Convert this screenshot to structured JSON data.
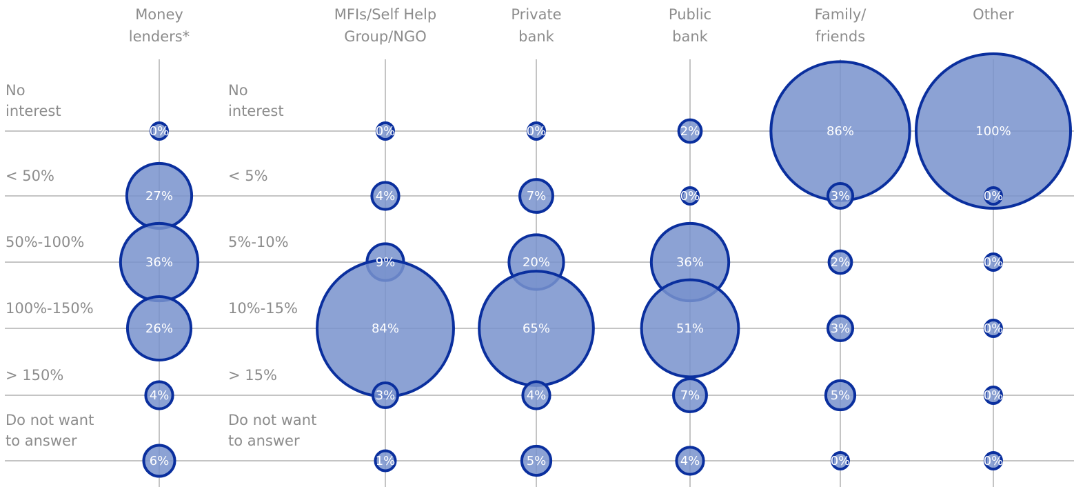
{
  "chart_data": {
    "type": "bubble_matrix",
    "categories": [
      "Money\nlenders*",
      "MFIs/Self Help\nGroup/NGO",
      "Private\nbank",
      "Public\nbank",
      "Family/\nfriends",
      "Other"
    ],
    "row_labels": [
      "No\ninterest",
      "< 50%",
      "50%-100%",
      "100%-150%",
      "> 150%",
      "Do not want\nto answer"
    ],
    "row_labels_2": [
      "No\ninterest",
      "< 5%",
      "5%-10%",
      "10%-15%",
      "> 15%",
      "Do not want\nto answer"
    ],
    "color": "#7892cc",
    "edge_color": "#0a2f9e",
    "series": [
      {
        "name": "Money\nlenders*",
        "values": [
          0,
          27,
          36,
          26,
          4,
          6
        ],
        "value_labels": [
          "0%",
          "27%",
          "36%",
          "26%",
          "4%",
          "6%"
        ]
      },
      {
        "name": "MFIs/Self Help\nGroup/NGO",
        "values": [
          0,
          4,
          9,
          84,
          3,
          1
        ],
        "value_labels": [
          "0%",
          "4%",
          "9%",
          "84%",
          "3%",
          "1%"
        ]
      },
      {
        "name": "Private\nbank",
        "values": [
          0,
          7,
          20,
          65,
          4,
          5
        ],
        "value_labels": [
          "0%",
          "7%",
          "20%",
          "65%",
          "4%",
          "5%"
        ]
      },
      {
        "name": "Public\nbank",
        "values": [
          2,
          0,
          36,
          51,
          7,
          4
        ],
        "value_labels": [
          "2%",
          "0%",
          "36%",
          "51%",
          "7%",
          "4%"
        ]
      },
      {
        "name": "Family/\nfriends",
        "values": [
          86,
          3,
          2,
          3,
          5,
          0
        ],
        "value_labels": [
          "86%",
          "3%",
          "2%",
          "3%",
          "5%",
          "0%"
        ]
      },
      {
        "name": "Other",
        "values": [
          100,
          0,
          0,
          0,
          0,
          0
        ],
        "value_labels": [
          "100%",
          "0%",
          "0%",
          "0%",
          "0%",
          "0%"
        ]
      }
    ]
  }
}
